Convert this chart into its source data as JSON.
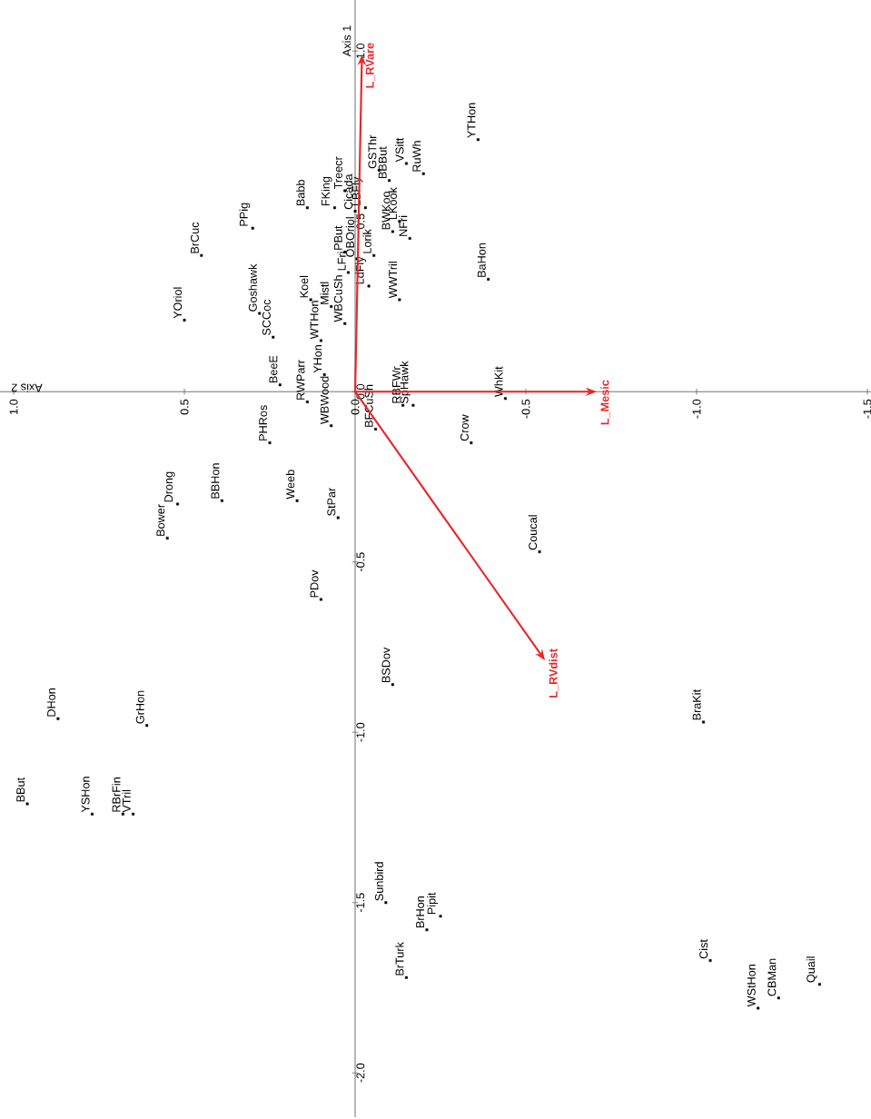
{
  "chart_data": {
    "type": "scatter",
    "xlabel": "Axis 2",
    "ylabel": "Axis 1",
    "xlim": [
      1.04,
      -1.51
    ],
    "ylim": [
      -2.13,
      1.15
    ],
    "xticks": [
      {
        "value": 1,
        "label": "1.0"
      },
      {
        "value": 0.5,
        "label": "0.5"
      },
      {
        "value": 0,
        "label": "0.0"
      },
      {
        "value": -0.5,
        "label": "-0.5"
      },
      {
        "value": -1,
        "label": "-1.0"
      },
      {
        "value": -1.5,
        "label": "-1.5"
      }
    ],
    "yticks": [
      {
        "value": 1,
        "label": "1.0"
      },
      {
        "value": 0.5,
        "label": "0.5"
      },
      {
        "value": 0,
        "label": "0.0"
      },
      {
        "value": -0.5,
        "label": "-0.5"
      },
      {
        "value": -1,
        "label": "-1.0"
      },
      {
        "value": -1.5,
        "label": "-1.5"
      },
      {
        "value": -2,
        "label": "-2.0"
      }
    ],
    "marker": "square",
    "series": [
      {
        "color": "#000000",
        "x": [
          -0.36,
          -0.07,
          -0.1,
          -0.15,
          -0.2,
          0.03,
          0.14,
          0.06,
          0.0,
          -0.03,
          -0.13,
          -0.11,
          -0.16,
          0.3,
          0.45,
          -0.055,
          0.03,
          -0.005,
          0.02,
          -0.04,
          0.28,
          0.5,
          0.13,
          0.07,
          0.03,
          -0.13,
          -0.39,
          0.24,
          0.1,
          0.09,
          0.22,
          0.14,
          0.07,
          0.25,
          -0.06,
          -0.14,
          -0.17,
          -0.44,
          -0.34,
          0.52,
          0.55,
          0.39,
          0.17,
          0.05,
          0.1,
          -0.54,
          0.87,
          0.61,
          -0.11,
          0.96,
          0.77,
          0.68,
          0.65,
          -0.09,
          -0.21,
          -0.25,
          -0.15,
          -1.02,
          -1.04,
          -1.36,
          -1.24,
          -1.18
        ],
        "values": [
          0.74,
          0.65,
          0.62,
          0.67,
          0.64,
          0.59,
          0.54,
          0.54,
          0.53,
          0.54,
          0.5,
          0.47,
          0.45,
          0.48,
          0.4,
          0.4,
          0.41,
          0.39,
          0.35,
          0.31,
          0.23,
          0.21,
          0.27,
          0.25,
          0.2,
          0.27,
          0.33,
          0.16,
          0.15,
          0.05,
          0.02,
          -0.03,
          -0.1,
          -0.15,
          -0.11,
          -0.04,
          -0.04,
          -0.02,
          -0.15,
          -0.33,
          -0.43,
          -0.32,
          -0.32,
          -0.37,
          -0.61,
          -0.47,
          -0.96,
          -0.98,
          -0.86,
          -1.21,
          -1.24,
          -1.24,
          -1.24,
          -1.5,
          -1.58,
          -1.54,
          -1.72,
          -0.97,
          -1.67,
          -1.74,
          -1.78,
          -1.81
        ]
      }
    ],
    "annotations": [
      {
        "text": "YTHon",
        "x": -0.36,
        "y": 0.74
      },
      {
        "text": "GSThr",
        "x": -0.07,
        "y": 0.65
      },
      {
        "text": "BBBut",
        "x": -0.1,
        "y": 0.62
      },
      {
        "text": "VSitt",
        "x": -0.15,
        "y": 0.67
      },
      {
        "text": "RuWh",
        "x": -0.2,
        "y": 0.64
      },
      {
        "text": "Treecr",
        "x": 0.03,
        "y": 0.59
      },
      {
        "text": "Babb",
        "x": 0.14,
        "y": 0.54
      },
      {
        "text": "FKing",
        "x": 0.06,
        "y": 0.54
      },
      {
        "text": "Cicada",
        "x": 0.0,
        "y": 0.53
      },
      {
        "text": "LBFly",
        "x": -0.03,
        "y": 0.54
      },
      {
        "text": "LKook",
        "x": -0.13,
        "y": 0.5
      },
      {
        "text": "BWKoo",
        "x": -0.11,
        "y": 0.47
      },
      {
        "text": "NFri",
        "x": -0.16,
        "y": 0.45
      },
      {
        "text": "PPig",
        "x": 0.3,
        "y": 0.48
      },
      {
        "text": "BrCuc",
        "x": 0.45,
        "y": 0.4
      },
      {
        "text": "Lorik",
        "x": -0.055,
        "y": 0.4
      },
      {
        "text": "PBut",
        "x": 0.03,
        "y": 0.41
      },
      {
        "text": "OBOriol",
        "x": -0.005,
        "y": 0.39
      },
      {
        "text": "LFri",
        "x": 0.02,
        "y": 0.35
      },
      {
        "text": "LdFly",
        "x": -0.04,
        "y": 0.31
      },
      {
        "text": "Goshawk",
        "x": 0.28,
        "y": 0.23
      },
      {
        "text": "YOriol",
        "x": 0.5,
        "y": 0.21
      },
      {
        "text": "Koel",
        "x": 0.13,
        "y": 0.27
      },
      {
        "text": "Mistl",
        "x": 0.07,
        "y": 0.25
      },
      {
        "text": "WBCuSh",
        "x": 0.03,
        "y": 0.2
      },
      {
        "text": "WWTril",
        "x": -0.13,
        "y": 0.27
      },
      {
        "text": "BaHon",
        "x": -0.39,
        "y": 0.33
      },
      {
        "text": "SCCoc",
        "x": 0.24,
        "y": 0.16
      },
      {
        "text": "WTHon",
        "x": 0.1,
        "y": 0.15
      },
      {
        "text": "YHon",
        "x": 0.09,
        "y": 0.05
      },
      {
        "text": "BeeE",
        "x": 0.22,
        "y": 0.02
      },
      {
        "text": "RWParr",
        "x": 0.14,
        "y": -0.03
      },
      {
        "text": "WBWood",
        "x": 0.07,
        "y": -0.1
      },
      {
        "text": "PHRos",
        "x": 0.25,
        "y": -0.15
      },
      {
        "text": "BFCuSh",
        "x": -0.06,
        "y": -0.11
      },
      {
        "text": "RBFWr",
        "x": -0.14,
        "y": -0.04
      },
      {
        "text": "SpHawk",
        "x": -0.17,
        "y": -0.04
      },
      {
        "text": "WhKit",
        "x": -0.44,
        "y": -0.02
      },
      {
        "text": "Crow",
        "x": -0.34,
        "y": -0.15
      },
      {
        "text": "Drong",
        "x": 0.52,
        "y": -0.33
      },
      {
        "text": "Bower",
        "x": 0.55,
        "y": -0.43
      },
      {
        "text": "BBHon",
        "x": 0.39,
        "y": -0.32
      },
      {
        "text": "Weeb",
        "x": 0.17,
        "y": -0.32
      },
      {
        "text": "StPar",
        "x": 0.05,
        "y": -0.37
      },
      {
        "text": "PDov",
        "x": 0.1,
        "y": -0.61
      },
      {
        "text": "Coucal",
        "x": -0.54,
        "y": -0.47
      },
      {
        "text": "DHon",
        "x": 0.87,
        "y": -0.96
      },
      {
        "text": "GrHon",
        "x": 0.61,
        "y": -0.98
      },
      {
        "text": "BSDov",
        "x": -0.11,
        "y": -0.86
      },
      {
        "text": "BBut",
        "x": 0.96,
        "y": -1.21
      },
      {
        "text": "YSHon",
        "x": 0.77,
        "y": -1.24
      },
      {
        "text": "RBrFin",
        "x": 0.68,
        "y": -1.24
      },
      {
        "text": "VTril",
        "x": 0.65,
        "y": -1.24
      },
      {
        "text": "Sunbird",
        "x": -0.09,
        "y": -1.5
      },
      {
        "text": "BrHon",
        "x": -0.21,
        "y": -1.58
      },
      {
        "text": "Pipit",
        "x": -0.25,
        "y": -1.54
      },
      {
        "text": "BrTurk",
        "x": -0.15,
        "y": -1.72
      },
      {
        "text": "BraKit",
        "x": -1.02,
        "y": -0.97
      },
      {
        "text": "Cist",
        "x": -1.04,
        "y": -1.67
      },
      {
        "text": "Quail",
        "x": -1.36,
        "y": -1.74
      },
      {
        "text": "CBMan",
        "x": -1.24,
        "y": -1.78
      },
      {
        "text": "WStHon",
        "x": -1.18,
        "y": -1.81
      },
      "L_RVare",
      "L_Mesic",
      "L_RVdist"
    ]
  }
}
